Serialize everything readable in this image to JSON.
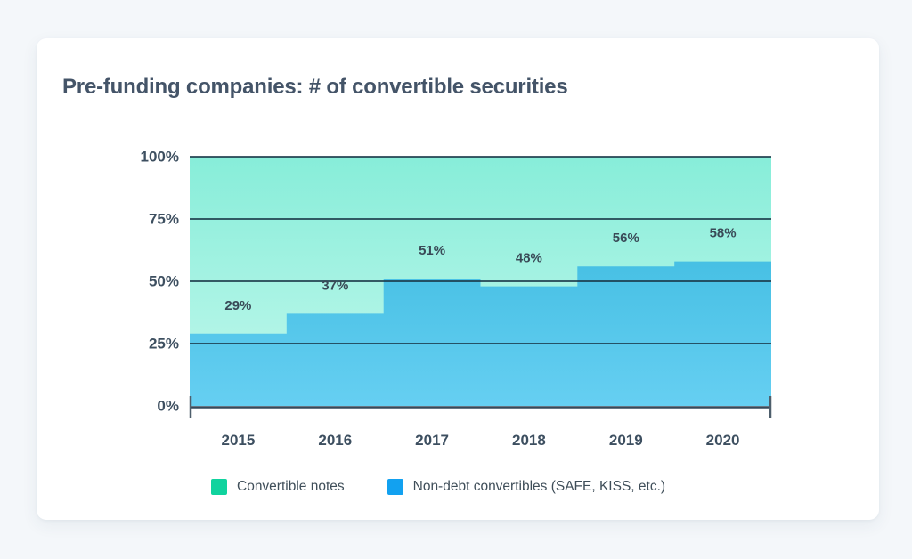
{
  "title": "Pre-funding companies: # of convertible securities",
  "chart_data": {
    "type": "area",
    "variant": "100-percent-stacked-step-area",
    "title": "Pre-funding companies: # of convertible securities",
    "categories": [
      "2015",
      "2016",
      "2017",
      "2018",
      "2019",
      "2020"
    ],
    "series": [
      {
        "name": "Non-debt convertibles (SAFE, KISS, etc.)",
        "values": [
          29,
          37,
          51,
          48,
          56,
          58
        ],
        "point_labels": [
          "29%",
          "37%",
          "51%",
          "48%",
          "56%",
          "58%"
        ],
        "fill_top": "#47c0e4",
        "fill_bottom": "#66cff2",
        "legend_color": "#12a1f0"
      },
      {
        "name": "Convertible notes",
        "values": [
          71,
          63,
          49,
          52,
          44,
          42
        ],
        "fill_top": "#87edd9",
        "fill_bottom": "#c2f8ec",
        "legend_color": "#10d39e"
      }
    ],
    "y_axis": {
      "range": [
        0,
        100
      ],
      "ticks": [
        {
          "label": "100%",
          "value": 100
        },
        {
          "label": "75%",
          "value": 75
        },
        {
          "label": "50%",
          "value": 50
        },
        {
          "label": "25%",
          "value": 25
        },
        {
          "label": "0%",
          "value": 0
        }
      ]
    },
    "grid": true,
    "legend_position": "bottom",
    "legend": [
      {
        "label": "Convertible notes",
        "color": "#10d39e"
      },
      {
        "label": "Non-debt convertibles (SAFE, KISS, etc.)",
        "color": "#12a1f0"
      }
    ],
    "colors": {
      "grid_line": "rgba(26,56,72,0.82)",
      "axis_line": "#36495a",
      "axis_cap": "#4e5f6c",
      "label_text": "#3d4f60",
      "page_background": "#f4f7fa",
      "card_background": "#ffffff"
    }
  }
}
